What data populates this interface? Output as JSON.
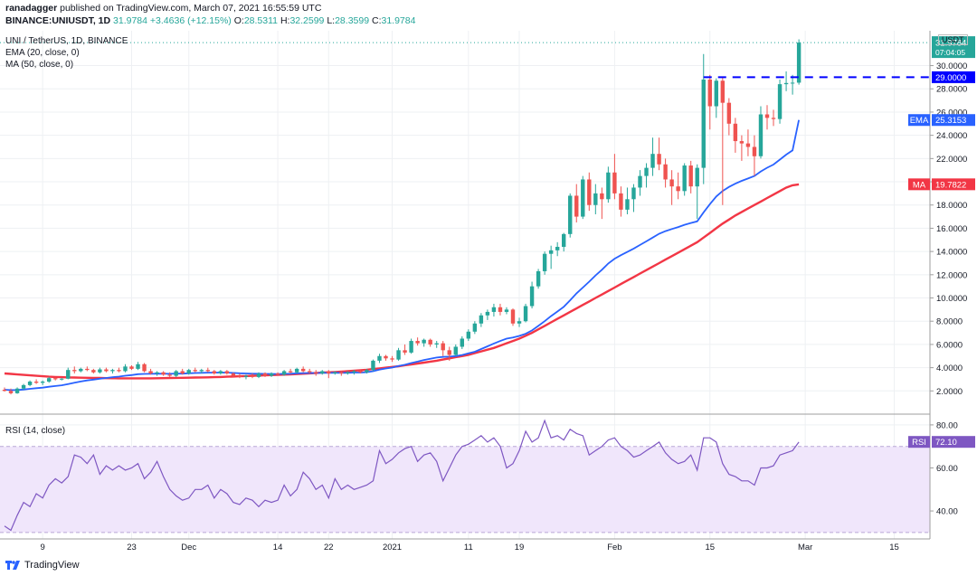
{
  "header": {
    "publisher": "ranadagger",
    "published_text": "published on TradingView.com, March 07, 2021 16:55:59 UTC",
    "symbol": "BINANCE:UNIUSDT, 1D",
    "last": "31.9784",
    "change": "+3.4636 (+12.15%)",
    "o_label": "O:",
    "o": "28.5311",
    "h_label": "H:",
    "h": "32.2599",
    "l_label": "L:",
    "l": "28.3599",
    "c_label": "C:",
    "c": "31.9784"
  },
  "legend": {
    "main": "UNI / TetherUS, 1D, BINANCE",
    "ema": "EMA (20, close, 0)",
    "ma": "MA (50, close, 0)",
    "rsi": "RSI (14, close)"
  },
  "footer": {
    "brand": "TradingView"
  },
  "colors": {
    "up": "#26a69a",
    "down": "#ef5350",
    "ema": "#2962ff",
    "ma": "#f23645",
    "rsi_line": "#7e57c2",
    "rsi_band": "#f0e6fb",
    "level": "#0000ff"
  },
  "chart_data": [
    {
      "type": "candlestick",
      "title": "UNI / TetherUS, 1D, BINANCE",
      "currency": "USDT",
      "x_tick_labels": [
        "9",
        "23",
        "Dec",
        "14",
        "22",
        "2021",
        "11",
        "19",
        "Feb",
        "15",
        "Mar",
        "15"
      ],
      "y_tick_labels": [
        "2.0000",
        "4.0000",
        "6.0000",
        "8.0000",
        "10.0000",
        "12.0000",
        "14.0000",
        "16.0000",
        "18.0000",
        "20.0000",
        "22.0000",
        "24.0000",
        "26.0000",
        "28.0000",
        "30.0000"
      ],
      "ylim": [
        0,
        33
      ],
      "price_tags": {
        "last": {
          "value": "31.9784",
          "countdown": "07:04:05"
        },
        "level": {
          "value": "29.0000"
        },
        "ema": {
          "label": "EMA",
          "value": "25.3153"
        },
        "ma": {
          "label": "MA",
          "value": "19.7822"
        }
      },
      "horizontal_level": 29.0,
      "candles": [
        [
          2.1,
          2.3,
          1.95,
          2.0
        ],
        [
          2.0,
          2.2,
          1.7,
          1.8
        ],
        [
          1.8,
          2.3,
          1.75,
          2.2
        ],
        [
          2.2,
          2.6,
          2.1,
          2.5
        ],
        [
          2.5,
          2.9,
          2.4,
          2.8
        ],
        [
          2.8,
          3.0,
          2.6,
          2.7
        ],
        [
          2.7,
          2.9,
          2.5,
          2.8
        ],
        [
          2.8,
          3.2,
          2.7,
          3.1
        ],
        [
          3.1,
          3.15,
          2.9,
          3.0
        ],
        [
          3.0,
          3.1,
          2.9,
          3.05
        ],
        [
          3.05,
          4.0,
          3.0,
          3.8
        ],
        [
          3.8,
          4.1,
          3.5,
          3.7
        ],
        [
          3.7,
          4.0,
          3.6,
          3.9
        ],
        [
          3.9,
          4.1,
          3.7,
          3.8
        ],
        [
          3.8,
          3.9,
          3.5,
          3.6
        ],
        [
          3.6,
          4.0,
          3.5,
          3.85
        ],
        [
          3.85,
          4.0,
          3.6,
          3.7
        ],
        [
          3.7,
          3.9,
          3.5,
          3.8
        ],
        [
          3.8,
          4.0,
          3.6,
          3.7
        ],
        [
          3.7,
          4.3,
          3.6,
          4.1
        ],
        [
          4.1,
          4.2,
          3.8,
          3.9
        ],
        [
          3.9,
          4.5,
          3.8,
          4.3
        ],
        [
          4.3,
          4.4,
          3.6,
          3.7
        ],
        [
          3.7,
          3.9,
          3.4,
          3.5
        ],
        [
          3.5,
          3.7,
          3.3,
          3.6
        ],
        [
          3.6,
          3.7,
          3.3,
          3.4
        ],
        [
          3.4,
          3.6,
          3.2,
          3.3
        ],
        [
          3.3,
          3.8,
          3.2,
          3.7
        ],
        [
          3.7,
          3.9,
          3.4,
          3.5
        ],
        [
          3.5,
          3.9,
          3.4,
          3.8
        ],
        [
          3.8,
          4.0,
          3.6,
          3.7
        ],
        [
          3.7,
          3.9,
          3.5,
          3.8
        ],
        [
          3.8,
          4.0,
          3.6,
          3.7
        ],
        [
          3.7,
          3.8,
          3.4,
          3.5
        ],
        [
          3.5,
          3.8,
          3.4,
          3.7
        ],
        [
          3.7,
          3.8,
          3.4,
          3.5
        ],
        [
          3.5,
          3.6,
          3.2,
          3.3
        ],
        [
          3.3,
          3.5,
          3.1,
          3.2
        ],
        [
          3.2,
          3.4,
          3.0,
          3.3
        ],
        [
          3.3,
          3.5,
          3.1,
          3.2
        ],
        [
          3.2,
          3.6,
          3.1,
          3.5
        ],
        [
          3.5,
          3.6,
          3.2,
          3.3
        ],
        [
          3.3,
          3.6,
          3.2,
          3.5
        ],
        [
          3.5,
          3.6,
          3.3,
          3.4
        ],
        [
          3.4,
          3.8,
          3.3,
          3.7
        ],
        [
          3.7,
          3.9,
          3.5,
          3.6
        ],
        [
          3.6,
          4.0,
          3.5,
          3.9
        ],
        [
          3.9,
          4.1,
          3.6,
          3.7
        ],
        [
          3.7,
          3.9,
          3.5,
          3.6
        ],
        [
          3.6,
          3.8,
          3.3,
          3.5
        ],
        [
          3.5,
          3.8,
          3.4,
          3.7
        ],
        [
          3.7,
          3.8,
          3.1,
          3.5
        ],
        [
          3.5,
          3.7,
          3.4,
          3.6
        ],
        [
          3.6,
          3.7,
          3.3,
          3.5
        ],
        [
          3.5,
          3.7,
          3.4,
          3.6
        ],
        [
          3.6,
          3.8,
          3.4,
          3.7
        ],
        [
          3.7,
          3.8,
          3.5,
          3.6
        ],
        [
          3.6,
          3.9,
          3.5,
          3.8
        ],
        [
          3.8,
          4.7,
          3.7,
          4.6
        ],
        [
          4.6,
          5.2,
          4.4,
          5.0
        ],
        [
          5.0,
          5.1,
          4.6,
          4.8
        ],
        [
          4.8,
          5.0,
          4.5,
          4.7
        ],
        [
          4.7,
          5.7,
          4.6,
          5.5
        ],
        [
          5.5,
          6.0,
          5.1,
          5.3
        ],
        [
          5.3,
          6.5,
          5.2,
          6.3
        ],
        [
          6.3,
          6.6,
          5.9,
          6.1
        ],
        [
          6.1,
          6.5,
          5.8,
          6.4
        ],
        [
          6.4,
          6.5,
          5.8,
          6.0
        ],
        [
          6.0,
          6.3,
          5.7,
          6.1
        ],
        [
          6.1,
          6.3,
          5.0,
          5.5
        ],
        [
          5.5,
          5.8,
          4.6,
          5.1
        ],
        [
          5.1,
          6.0,
          5.0,
          5.8
        ],
        [
          5.8,
          6.7,
          5.6,
          6.5
        ],
        [
          6.5,
          7.3,
          6.3,
          7.1
        ],
        [
          7.1,
          8.0,
          6.9,
          7.8
        ],
        [
          7.8,
          8.7,
          7.5,
          8.5
        ],
        [
          8.5,
          9.0,
          8.1,
          8.8
        ],
        [
          8.8,
          9.5,
          8.4,
          9.2
        ],
        [
          9.2,
          9.5,
          8.5,
          8.8
        ],
        [
          8.8,
          9.2,
          8.6,
          9.0
        ],
        [
          9.0,
          9.1,
          7.6,
          7.8
        ],
        [
          7.8,
          8.3,
          7.5,
          8.0
        ],
        [
          8.0,
          9.5,
          7.9,
          9.3
        ],
        [
          9.3,
          11.4,
          9.1,
          11.0
        ],
        [
          11.0,
          12.5,
          10.8,
          12.3
        ],
        [
          12.3,
          14.0,
          12.0,
          13.8
        ],
        [
          13.8,
          14.5,
          12.5,
          14.1
        ],
        [
          14.1,
          14.8,
          13.6,
          14.4
        ],
        [
          14.4,
          15.6,
          14.0,
          15.5
        ],
        [
          15.5,
          19.0,
          15.2,
          18.8
        ],
        [
          18.8,
          19.8,
          16.5,
          17.0
        ],
        [
          17.0,
          20.5,
          16.8,
          20.2
        ],
        [
          20.2,
          20.8,
          17.5,
          18.0
        ],
        [
          18.0,
          19.8,
          17.2,
          19.0
        ],
        [
          19.0,
          19.5,
          16.8,
          18.5
        ],
        [
          18.5,
          21.3,
          18.2,
          20.8
        ],
        [
          20.8,
          22.4,
          18.5,
          19.0
        ],
        [
          19.0,
          19.6,
          17.0,
          17.6
        ],
        [
          17.6,
          19.5,
          17.2,
          18.5
        ],
        [
          18.5,
          19.8,
          17.4,
          19.5
        ],
        [
          19.5,
          21.0,
          18.8,
          20.5
        ],
        [
          20.5,
          21.6,
          19.5,
          21.2
        ],
        [
          21.2,
          23.8,
          20.5,
          22.4
        ],
        [
          22.4,
          23.8,
          21.0,
          21.5
        ],
        [
          21.5,
          22.0,
          19.5,
          20.2
        ],
        [
          20.2,
          21.0,
          18.0,
          19.6
        ],
        [
          19.6,
          20.8,
          18.5,
          19.2
        ],
        [
          19.2,
          21.6,
          18.8,
          21.4
        ],
        [
          21.4,
          21.8,
          19.0,
          19.6
        ],
        [
          19.6,
          21.5,
          16.8,
          21.2
        ],
        [
          21.2,
          31.0,
          19.8,
          28.8
        ],
        [
          28.8,
          29.2,
          24.5,
          26.5
        ],
        [
          26.5,
          28.9,
          25.5,
          28.7
        ],
        [
          28.7,
          29.0,
          18.0,
          26.8
        ],
        [
          26.8,
          27.2,
          24.0,
          25.0
        ],
        [
          25.0,
          25.5,
          22.5,
          23.5
        ],
        [
          23.5,
          24.0,
          21.8,
          23.3
        ],
        [
          23.3,
          24.5,
          22.2,
          23.0
        ],
        [
          23.0,
          24.0,
          20.5,
          22.2
        ],
        [
          22.2,
          26.5,
          22.0,
          25.8
        ],
        [
          25.8,
          26.6,
          24.5,
          25.5
        ],
        [
          25.5,
          26.2,
          24.8,
          25.4
        ],
        [
          25.4,
          28.8,
          25.0,
          28.4
        ],
        [
          28.4,
          29.5,
          27.8,
          28.5
        ],
        [
          28.5,
          29.2,
          27.5,
          28.53
        ],
        [
          28.53,
          32.26,
          28.36,
          31.98
        ]
      ],
      "ema20": [
        2.1,
        2.07,
        2.08,
        2.12,
        2.18,
        2.23,
        2.28,
        2.36,
        2.42,
        2.48,
        2.59,
        2.7,
        2.81,
        2.9,
        2.97,
        3.05,
        3.11,
        3.18,
        3.23,
        3.31,
        3.36,
        3.44,
        3.46,
        3.47,
        3.48,
        3.48,
        3.47,
        3.49,
        3.49,
        3.52,
        3.54,
        3.56,
        3.57,
        3.57,
        3.58,
        3.57,
        3.55,
        3.52,
        3.5,
        3.48,
        3.48,
        3.46,
        3.46,
        3.45,
        3.47,
        3.48,
        3.51,
        3.53,
        3.54,
        3.54,
        3.55,
        3.55,
        3.56,
        3.56,
        3.56,
        3.58,
        3.58,
        3.61,
        3.7,
        3.83,
        3.93,
        4.01,
        4.15,
        4.25,
        4.4,
        4.52,
        4.66,
        4.77,
        4.87,
        4.93,
        4.95,
        5.0,
        5.09,
        5.23,
        5.37,
        5.6,
        5.84,
        6.08,
        6.3,
        6.5,
        6.59,
        6.73,
        6.92,
        7.21,
        7.6,
        8.0,
        8.44,
        8.83,
        9.24,
        9.8,
        10.4,
        10.9,
        11.4,
        11.94,
        12.43,
        12.97,
        13.38,
        13.68,
        13.96,
        14.25,
        14.56,
        14.87,
        15.2,
        15.53,
        15.75,
        15.93,
        16.1,
        16.3,
        16.45,
        16.59,
        17.37,
        18.08,
        18.73,
        19.21,
        19.56,
        19.84,
        20.08,
        20.28,
        20.5,
        20.89,
        21.21,
        21.48,
        21.91,
        22.34,
        22.7,
        25.32
      ],
      "ma50": [
        3.5,
        3.46,
        3.42,
        3.38,
        3.34,
        3.3,
        3.26,
        3.22,
        3.2,
        3.18,
        3.16,
        3.15,
        3.14,
        3.13,
        3.12,
        3.11,
        3.1,
        3.09,
        3.08,
        3.08,
        3.08,
        3.08,
        3.08,
        3.08,
        3.09,
        3.1,
        3.11,
        3.12,
        3.13,
        3.14,
        3.15,
        3.16,
        3.17,
        3.18,
        3.2,
        3.22,
        3.24,
        3.26,
        3.28,
        3.3,
        3.32,
        3.34,
        3.36,
        3.38,
        3.4,
        3.42,
        3.45,
        3.48,
        3.51,
        3.54,
        3.57,
        3.6,
        3.63,
        3.66,
        3.7,
        3.74,
        3.78,
        3.82,
        3.88,
        3.94,
        4.0,
        4.06,
        4.12,
        4.2,
        4.28,
        4.36,
        4.44,
        4.52,
        4.6,
        4.7,
        4.8,
        4.9,
        5.0,
        5.1,
        5.25,
        5.4,
        5.55,
        5.7,
        5.9,
        6.1,
        6.3,
        6.5,
        6.75,
        7.0,
        7.3,
        7.6,
        7.9,
        8.2,
        8.5,
        8.8,
        9.1,
        9.4,
        9.7,
        10.0,
        10.3,
        10.6,
        10.9,
        11.2,
        11.5,
        11.8,
        12.1,
        12.4,
        12.7,
        13.0,
        13.3,
        13.6,
        13.9,
        14.2,
        14.5,
        14.8,
        15.2,
        15.6,
        16.0,
        16.4,
        16.75,
        17.1,
        17.4,
        17.7,
        18.0,
        18.3,
        18.6,
        18.9,
        19.2,
        19.5,
        19.7,
        19.78
      ]
    },
    {
      "type": "line",
      "title": "RSI (14, close)",
      "ylim": [
        27,
        85
      ],
      "y_tick_labels": [
        "40.00",
        "60.00",
        "80.00"
      ],
      "band": [
        30,
        70
      ],
      "current": {
        "label": "RSI",
        "value": "72.10"
      },
      "values": [
        33,
        31,
        38,
        44,
        42,
        48,
        46,
        52,
        55,
        53,
        56,
        66,
        65,
        62,
        66,
        57,
        61,
        59,
        61,
        59,
        60,
        62,
        55,
        58,
        63,
        56,
        50,
        47,
        45,
        46,
        50,
        50,
        52,
        46,
        50,
        48,
        44,
        43,
        46,
        45,
        42,
        45,
        44,
        45,
        52,
        47,
        50,
        58,
        55,
        50,
        52,
        46,
        55,
        50,
        52,
        50,
        51,
        52,
        54,
        68,
        62,
        64,
        67,
        69,
        70,
        63,
        66,
        67,
        63,
        54,
        60,
        66,
        70,
        71,
        73,
        75,
        72,
        74,
        70,
        60,
        62,
        68,
        77,
        72,
        74,
        82,
        74,
        75,
        73,
        78,
        76,
        75,
        66,
        68,
        70,
        73,
        74,
        70,
        68,
        65,
        66,
        68,
        70,
        72,
        67,
        64,
        62,
        63,
        66,
        59,
        74,
        74,
        72,
        62,
        57,
        56,
        54,
        54,
        52,
        60,
        60,
        61,
        66,
        67,
        68,
        72
      ]
    }
  ]
}
